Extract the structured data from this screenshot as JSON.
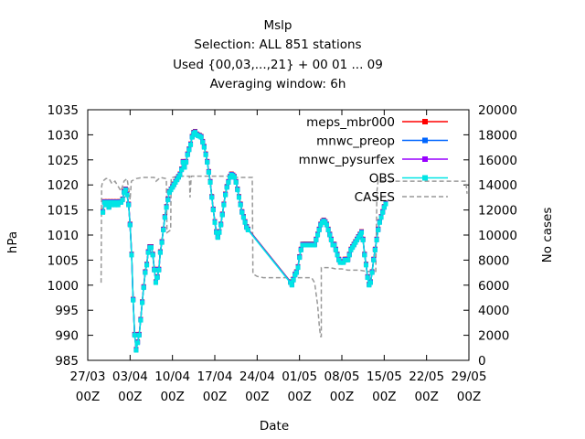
{
  "chart_data": {
    "type": "line",
    "title": "Mslp",
    "subtitle_lines": [
      "Selection: ALL    851 stations",
      "Used {00,03,...,21} + 00 01 ... 09",
      "Averaging window:  6h"
    ],
    "xlabel": "Date",
    "ylabel": "hPa",
    "y2label": "No cases",
    "ylim": [
      985,
      1035
    ],
    "y2lim": [
      0,
      20000
    ],
    "y_ticks": [
      "985",
      "990",
      "995",
      "1000",
      "1005",
      "1010",
      "1015",
      "1020",
      "1025",
      "1030",
      "1035"
    ],
    "y2_ticks": [
      "0",
      "2000",
      "4000",
      "6000",
      "8000",
      "10000",
      "12000",
      "14000",
      "16000",
      "18000",
      "20000"
    ],
    "x_range_days": [
      0,
      63
    ],
    "x_ticks": [
      {
        "day": 0,
        "line1": "27/03",
        "line2": "00Z"
      },
      {
        "day": 7,
        "line1": "03/04",
        "line2": "00Z"
      },
      {
        "day": 14,
        "line1": "10/04",
        "line2": "00Z"
      },
      {
        "day": 21,
        "line1": "17/04",
        "line2": "00Z"
      },
      {
        "day": 28,
        "line1": "24/04",
        "line2": "00Z"
      },
      {
        "day": 35,
        "line1": "01/05",
        "line2": "00Z"
      },
      {
        "day": 42,
        "line1": "08/05",
        "line2": "00Z"
      },
      {
        "day": 49,
        "line1": "15/05",
        "line2": "00Z"
      },
      {
        "day": 56,
        "line1": "22/05",
        "line2": "00Z"
      },
      {
        "day": 63,
        "line1": "29/05",
        "line2": "00Z"
      }
    ],
    "legend_position": "top-right",
    "grid": false,
    "series": [
      {
        "name": "meps_mbr000",
        "color": "#ff0000",
        "marker": "square",
        "axis": "left"
      },
      {
        "name": "mnwc_preop",
        "color": "#0066ff",
        "marker": "square",
        "axis": "left"
      },
      {
        "name": "mnwc_pysurfex",
        "color": "#9900ff",
        "marker": "square",
        "axis": "left"
      },
      {
        "name": "OBS",
        "color": "#00e5e5",
        "marker": "square",
        "axis": "left"
      },
      {
        "name": "CASES",
        "color": "#999999",
        "marker": "none",
        "axis": "right",
        "dashed": true
      }
    ],
    "mslp_points": [
      [
        2.5,
        1014.5
      ],
      [
        2.75,
        1016.5
      ],
      [
        3,
        1016
      ],
      [
        3.25,
        1016.5
      ],
      [
        3.5,
        1015.5
      ],
      [
        3.75,
        1016.5
      ],
      [
        4,
        1016
      ],
      [
        4.25,
        1016.5
      ],
      [
        4.5,
        1016
      ],
      [
        4.75,
        1016.5
      ],
      [
        5,
        1016
      ],
      [
        5.25,
        1016.5
      ],
      [
        5.5,
        1016.5
      ],
      [
        5.75,
        1017
      ],
      [
        6,
        1018.5
      ],
      [
        6.25,
        1019
      ],
      [
        6.5,
        1018
      ],
      [
        6.75,
        1016
      ],
      [
        7,
        1012
      ],
      [
        7.25,
        1006
      ],
      [
        7.5,
        997
      ],
      [
        7.75,
        990
      ],
      [
        8,
        987
      ],
      [
        8.25,
        988.5
      ],
      [
        8.5,
        990
      ],
      [
        8.75,
        993
      ],
      [
        9,
        996.5
      ],
      [
        9.25,
        999.5
      ],
      [
        9.5,
        1002.5
      ],
      [
        9.75,
        1004
      ],
      [
        10,
        1006.5
      ],
      [
        10.25,
        1007.5
      ],
      [
        10.5,
        1007.5
      ],
      [
        10.75,
        1006
      ],
      [
        11,
        1003
      ],
      [
        11.25,
        1000.5
      ],
      [
        11.5,
        1001.5
      ],
      [
        11.75,
        1003
      ],
      [
        12,
        1006.5
      ],
      [
        12.25,
        1008.5
      ],
      [
        12.5,
        1011
      ],
      [
        12.75,
        1013.5
      ],
      [
        13,
        1015.5
      ],
      [
        13.25,
        1017
      ],
      [
        13.5,
        1018.5
      ],
      [
        13.75,
        1019
      ],
      [
        14,
        1019.5
      ],
      [
        14.25,
        1020
      ],
      [
        14.5,
        1020.5
      ],
      [
        14.75,
        1021
      ],
      [
        15,
        1021.5
      ],
      [
        15.25,
        1022
      ],
      [
        15.5,
        1023
      ],
      [
        15.75,
        1024.5
      ],
      [
        16,
        1023.5
      ],
      [
        16.25,
        1024.5
      ],
      [
        16.5,
        1026
      ],
      [
        16.75,
        1027
      ],
      [
        17,
        1028
      ],
      [
        17.25,
        1029.5
      ],
      [
        17.5,
        1030.3
      ],
      [
        17.75,
        1030.5
      ],
      [
        18,
        1030
      ],
      [
        18.25,
        1029.8
      ],
      [
        18.5,
        1029.7
      ],
      [
        18.75,
        1029.5
      ],
      [
        19,
        1028.5
      ],
      [
        19.25,
        1027.5
      ],
      [
        19.5,
        1026
      ],
      [
        19.75,
        1024.5
      ],
      [
        20,
        1022.5
      ],
      [
        20.25,
        1020.5
      ],
      [
        20.5,
        1017.5
      ],
      [
        20.75,
        1015
      ],
      [
        21,
        1012.5
      ],
      [
        21.25,
        1010.5
      ],
      [
        21.5,
        1009.5
      ],
      [
        21.75,
        1010.5
      ],
      [
        22,
        1012
      ],
      [
        22.25,
        1014
      ],
      [
        22.5,
        1016
      ],
      [
        22.75,
        1018
      ],
      [
        23,
        1019.5
      ],
      [
        23.25,
        1020.5
      ],
      [
        23.5,
        1021.5
      ],
      [
        23.75,
        1022
      ],
      [
        24,
        1021.8
      ],
      [
        24.25,
        1021.5
      ],
      [
        24.5,
        1020.5
      ],
      [
        24.75,
        1019
      ],
      [
        25,
        1017.5
      ],
      [
        25.25,
        1016
      ],
      [
        25.5,
        1014.5
      ],
      [
        25.75,
        1013.5
      ],
      [
        26,
        1012.5
      ],
      [
        26.25,
        1011.5
      ],
      [
        26.5,
        1011
      ],
      [
        33.5,
        1000.5
      ],
      [
        33.75,
        1000
      ],
      [
        34,
        1001
      ],
      [
        34.25,
        1002
      ],
      [
        34.5,
        1002.5
      ],
      [
        34.75,
        1003.5
      ],
      [
        35,
        1005.5
      ],
      [
        35.25,
        1007
      ],
      [
        35.5,
        1008
      ],
      [
        35.75,
        1008
      ],
      [
        36,
        1008
      ],
      [
        36.25,
        1008
      ],
      [
        36.5,
        1008
      ],
      [
        36.75,
        1008
      ],
      [
        37,
        1008
      ],
      [
        37.25,
        1008
      ],
      [
        37.5,
        1008
      ],
      [
        37.75,
        1009
      ],
      [
        38,
        1010
      ],
      [
        38.25,
        1011
      ],
      [
        38.5,
        1012
      ],
      [
        38.75,
        1012.5
      ],
      [
        39,
        1012.8
      ],
      [
        39.25,
        1012.5
      ],
      [
        39.5,
        1012
      ],
      [
        39.75,
        1011
      ],
      [
        40,
        1010
      ],
      [
        40.25,
        1009
      ],
      [
        40.5,
        1008
      ],
      [
        40.75,
        1008
      ],
      [
        41,
        1007
      ],
      [
        41.25,
        1006
      ],
      [
        41.5,
        1005
      ],
      [
        41.75,
        1004.5
      ],
      [
        42,
        1004.5
      ],
      [
        42.25,
        1004.5
      ],
      [
        42.5,
        1005
      ],
      [
        42.75,
        1005
      ],
      [
        43,
        1005
      ],
      [
        43.25,
        1006
      ],
      [
        43.5,
        1007
      ],
      [
        43.75,
        1007.5
      ],
      [
        44,
        1008
      ],
      [
        44.25,
        1008.5
      ],
      [
        44.5,
        1009
      ],
      [
        44.75,
        1009.5
      ],
      [
        45,
        1010
      ],
      [
        45.25,
        1010.5
      ],
      [
        45.5,
        1009
      ],
      [
        45.75,
        1006
      ],
      [
        46,
        1004
      ],
      [
        46.25,
        1001.5
      ],
      [
        46.5,
        1000
      ],
      [
        46.75,
        1000.5
      ],
      [
        47,
        1002.5
      ],
      [
        47.25,
        1005
      ],
      [
        47.5,
        1007
      ],
      [
        47.75,
        1009
      ],
      [
        48,
        1011
      ],
      [
        48.25,
        1012.5
      ],
      [
        48.5,
        1013.5
      ],
      [
        48.75,
        1014.5
      ],
      [
        49,
        1015.5
      ],
      [
        49.25,
        1016.2
      ]
    ],
    "cases_points": [
      [
        2.2,
        6200
      ],
      [
        2.3,
        13900
      ],
      [
        2.5,
        14300
      ],
      [
        3,
        14500
      ],
      [
        3.5,
        14500
      ],
      [
        4,
        14100
      ],
      [
        4.5,
        14300
      ],
      [
        5,
        13900
      ],
      [
        5.5,
        13500
      ],
      [
        6,
        14300
      ],
      [
        6.5,
        14500
      ],
      [
        6.9,
        13300
      ],
      [
        7,
        12800
      ],
      [
        7.2,
        14300
      ],
      [
        8,
        14500
      ],
      [
        9,
        14600
      ],
      [
        10,
        14600
      ],
      [
        11,
        14600
      ],
      [
        11.3,
        14300
      ],
      [
        12,
        14600
      ],
      [
        13,
        14500
      ],
      [
        13.1,
        10200
      ],
      [
        13.7,
        10400
      ],
      [
        13.8,
        14600
      ],
      [
        14,
        14600
      ],
      [
        15,
        14700
      ],
      [
        16,
        14700
      ],
      [
        16.8,
        14700
      ],
      [
        16.9,
        13000
      ],
      [
        17.1,
        14700
      ],
      [
        18,
        14700
      ],
      [
        19,
        14700
      ],
      [
        20,
        14700
      ],
      [
        21,
        14700
      ],
      [
        22,
        14700
      ],
      [
        23,
        14700
      ],
      [
        24,
        14600
      ],
      [
        25,
        14600
      ],
      [
        26,
        14600
      ],
      [
        27,
        14600
      ],
      [
        27.2,
        14600
      ],
      [
        27.3,
        6900
      ],
      [
        28,
        6700
      ],
      [
        29,
        6600
      ],
      [
        30,
        6600
      ],
      [
        31,
        6600
      ],
      [
        32,
        6600
      ],
      [
        33,
        6600
      ],
      [
        34,
        6600
      ],
      [
        35,
        6600
      ],
      [
        36,
        6600
      ],
      [
        37,
        6600
      ],
      [
        37.5,
        6200
      ],
      [
        38,
        4400
      ],
      [
        38.3,
        2600
      ],
      [
        38.5,
        1900
      ],
      [
        38.6,
        1900
      ],
      [
        38.6,
        7400
      ],
      [
        39,
        7400
      ],
      [
        40,
        7400
      ],
      [
        41,
        7300
      ],
      [
        42,
        7300
      ],
      [
        43,
        7200
      ],
      [
        44,
        7200
      ],
      [
        45,
        7200
      ],
      [
        46,
        7100
      ],
      [
        47,
        7100
      ],
      [
        47.6,
        7100
      ],
      [
        47.8,
        13500
      ],
      [
        48,
        14400
      ],
      [
        49,
        14300
      ],
      [
        50,
        14300
      ],
      [
        51,
        14300
      ],
      [
        52,
        14300
      ],
      [
        53,
        14300
      ],
      [
        54,
        14300
      ],
      [
        55,
        14300
      ],
      [
        56,
        14300
      ],
      [
        57,
        14300
      ],
      [
        58,
        14300
      ],
      [
        59,
        14300
      ],
      [
        60,
        14300
      ],
      [
        61,
        14300
      ],
      [
        62,
        14300
      ],
      [
        62.5,
        14300
      ],
      [
        62.7,
        13300
      ]
    ]
  }
}
